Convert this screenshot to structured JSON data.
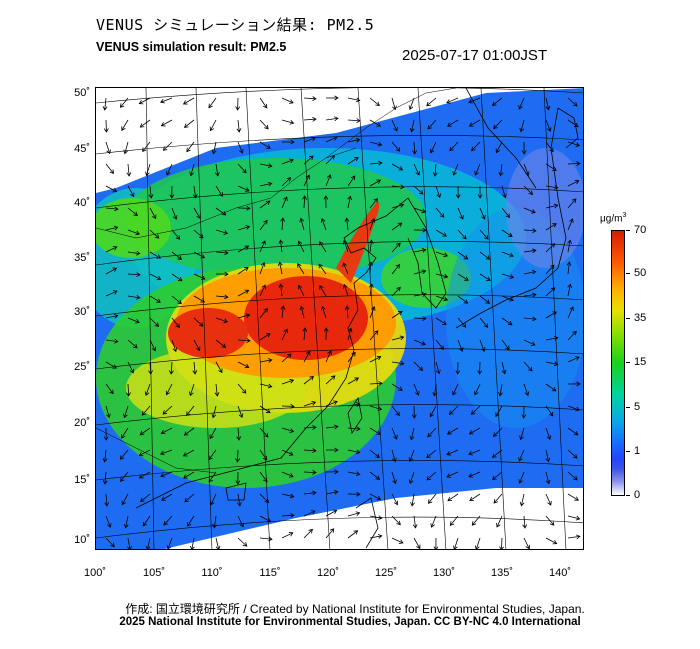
{
  "header": {
    "title_ja": "VENUS シミュレーション結果: PM2.5",
    "title_en": "VENUS simulation result: PM2.5",
    "timestamp": "2025-07-17 01:00JST"
  },
  "map": {
    "lat_labels": [
      "50˚",
      "45˚",
      "40˚",
      "35˚",
      "30˚",
      "25˚",
      "20˚",
      "15˚",
      "10˚"
    ],
    "lon_labels": [
      "100˚",
      "105˚",
      "110˚",
      "115˚",
      "120˚",
      "125˚",
      "130˚",
      "135˚",
      "140˚"
    ],
    "lat_extent": [
      10,
      50
    ],
    "lon_extent": [
      100,
      140
    ]
  },
  "colorbar": {
    "unit_base": "μg/m",
    "unit_sup": "3",
    "labels": [
      "70",
      "50",
      "35",
      "15",
      "5",
      "1",
      "0"
    ],
    "colors": [
      "#d51c00",
      "#ff5a00",
      "#ffb000",
      "#e8e000",
      "#18d01c",
      "#00d4a0",
      "#1470ff",
      "#3a53e8",
      "#ffffff"
    ]
  },
  "footer": {
    "credit_1": "作成: 国立環境研究所 / Created by National Institute for Environmental Studies, Japan.",
    "credit_2": "2025 National Institute for Environmental Studies, Japan. CC BY-NC 4.0 International"
  }
}
